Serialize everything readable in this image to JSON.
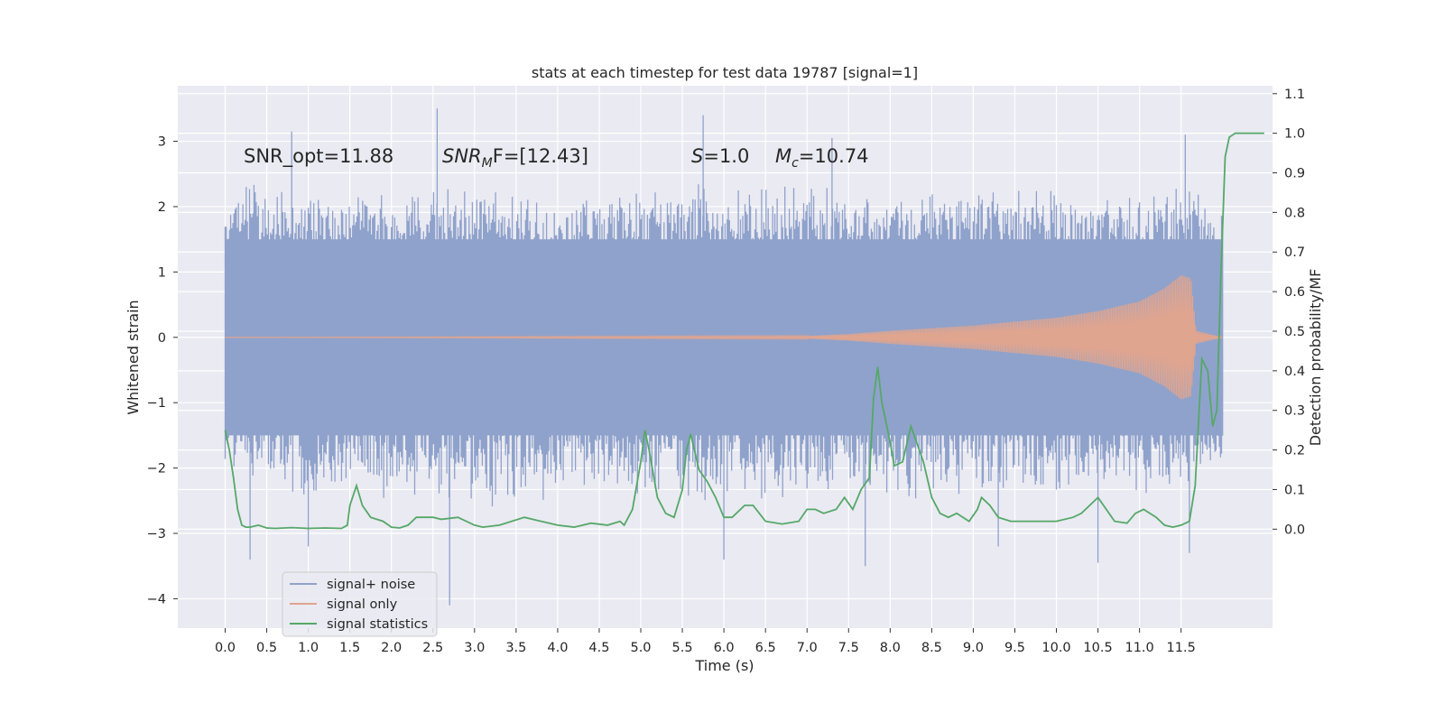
{
  "chart_data": {
    "type": "line",
    "title": "stats at each timestep for test data 19787 [signal=1]",
    "xlabel": "Time (s)",
    "ylabel": "Whitened strain",
    "y2label": "Detection probability/MF",
    "xlim": [
      -0.57,
      12.6
    ],
    "ylim": [
      -4.45,
      3.85
    ],
    "y2lim": [
      -0.25,
      1.12
    ],
    "x_ticks": [
      "0.0",
      "0.5",
      "1.0",
      "1.5",
      "2.0",
      "2.5",
      "3.0",
      "3.5",
      "4.0",
      "4.5",
      "5.0",
      "5.5",
      "6.0",
      "6.5",
      "7.0",
      "7.5",
      "8.0",
      "8.5",
      "9.0",
      "9.5",
      "10.0",
      "10.5",
      "11.0",
      "11.5"
    ],
    "y_ticks": [
      "3",
      "2",
      "1",
      "0",
      "−1",
      "−2",
      "−3",
      "−4"
    ],
    "y2_ticks": [
      "0.0",
      "0.1",
      "0.2",
      "0.3",
      "0.4",
      "0.5",
      "0.6",
      "0.7",
      "0.8",
      "0.9",
      "1.0",
      "1.1"
    ],
    "grid": true,
    "legend_position": "bottom-left",
    "annotations": {
      "snr_opt": "SNR_opt=11.88",
      "snr_mf_prefix": "SNR",
      "snr_mf_sub": "M",
      "snr_mf_suffix": "F=[12.43]",
      "s_var": "S",
      "s_value": "=1.0",
      "mc_var": "M",
      "mc_sub": "c",
      "mc_value": "=10.74"
    },
    "series": [
      {
        "name": "signal+ noise",
        "color": "#8fa2cb",
        "x_range": [
          0.0,
          12.0
        ],
        "envelope": {
          "typical_upper": [
            [
              0.0,
              1.9
            ],
            [
              0.2,
              2.6
            ],
            [
              0.6,
              2.3
            ],
            [
              1.0,
              2.4
            ],
            [
              2.0,
              2.2
            ],
            [
              2.6,
              2.6
            ],
            [
              3.0,
              2.3
            ],
            [
              4.0,
              2.2
            ],
            [
              5.0,
              2.3
            ],
            [
              5.7,
              2.5
            ],
            [
              6.0,
              2.3
            ],
            [
              7.0,
              2.4
            ],
            [
              8.0,
              2.3
            ],
            [
              9.0,
              2.4
            ],
            [
              10.0,
              2.3
            ],
            [
              11.0,
              2.2
            ],
            [
              11.5,
              2.5
            ],
            [
              12.0,
              2.0
            ]
          ],
          "typical_lower": [
            [
              0.0,
              -2.0
            ],
            [
              1.0,
              -2.6
            ],
            [
              2.0,
              -2.5
            ],
            [
              3.0,
              -2.6
            ],
            [
              4.0,
              -2.6
            ],
            [
              5.0,
              -2.5
            ],
            [
              6.0,
              -2.7
            ],
            [
              7.0,
              -2.5
            ],
            [
              8.0,
              -2.6
            ],
            [
              9.0,
              -2.5
            ],
            [
              10.0,
              -2.6
            ],
            [
              11.0,
              -2.6
            ],
            [
              12.0,
              -2.0
            ]
          ],
          "spikes": [
            [
              0.8,
              3.15
            ],
            [
              2.55,
              3.5
            ],
            [
              5.75,
              3.4
            ],
            [
              7.3,
              3.05
            ],
            [
              11.55,
              3.1
            ],
            [
              2.7,
              -4.1
            ],
            [
              0.3,
              -3.4
            ],
            [
              1.0,
              -3.2
            ],
            [
              7.7,
              -3.5
            ],
            [
              10.5,
              -3.45
            ],
            [
              6.0,
              -3.4
            ],
            [
              11.6,
              -3.3
            ],
            [
              9.3,
              -3.2
            ]
          ]
        }
      },
      {
        "name": "signal only",
        "color": "#e0a58f",
        "x_range": [
          0.0,
          12.0
        ],
        "amplitude_envelope": [
          [
            0.0,
            0.0
          ],
          [
            7.0,
            0.02
          ],
          [
            7.5,
            0.05
          ],
          [
            8.0,
            0.1
          ],
          [
            9.0,
            0.18
          ],
          [
            10.0,
            0.3
          ],
          [
            10.5,
            0.4
          ],
          [
            11.0,
            0.55
          ],
          [
            11.3,
            0.75
          ],
          [
            11.5,
            0.95
          ],
          [
            11.62,
            0.9
          ],
          [
            11.68,
            0.1
          ],
          [
            12.0,
            0.0
          ]
        ]
      },
      {
        "name": "signal statistics",
        "color": "#55a868",
        "axis": "right",
        "points": [
          [
            0.0,
            0.25
          ],
          [
            0.05,
            0.2
          ],
          [
            0.1,
            0.13
          ],
          [
            0.15,
            0.05
          ],
          [
            0.2,
            0.01
          ],
          [
            0.25,
            0.005
          ],
          [
            0.3,
            0.005
          ],
          [
            0.4,
            0.01
          ],
          [
            0.5,
            0.003
          ],
          [
            0.6,
            0.002
          ],
          [
            0.8,
            0.004
          ],
          [
            1.0,
            0.002
          ],
          [
            1.2,
            0.003
          ],
          [
            1.4,
            0.002
          ],
          [
            1.47,
            0.01
          ],
          [
            1.5,
            0.06
          ],
          [
            1.58,
            0.11
          ],
          [
            1.65,
            0.06
          ],
          [
            1.75,
            0.03
          ],
          [
            1.9,
            0.02
          ],
          [
            2.0,
            0.005
          ],
          [
            2.1,
            0.003
          ],
          [
            2.2,
            0.01
          ],
          [
            2.3,
            0.03
          ],
          [
            2.5,
            0.03
          ],
          [
            2.6,
            0.025
          ],
          [
            2.8,
            0.03
          ],
          [
            3.0,
            0.01
          ],
          [
            3.1,
            0.005
          ],
          [
            3.3,
            0.01
          ],
          [
            3.6,
            0.03
          ],
          [
            3.8,
            0.02
          ],
          [
            4.0,
            0.01
          ],
          [
            4.2,
            0.005
          ],
          [
            4.4,
            0.015
          ],
          [
            4.6,
            0.01
          ],
          [
            4.75,
            0.02
          ],
          [
            4.8,
            0.01
          ],
          [
            4.9,
            0.05
          ],
          [
            5.0,
            0.17
          ],
          [
            5.05,
            0.25
          ],
          [
            5.1,
            0.2
          ],
          [
            5.2,
            0.08
          ],
          [
            5.3,
            0.04
          ],
          [
            5.4,
            0.03
          ],
          [
            5.5,
            0.1
          ],
          [
            5.55,
            0.2
          ],
          [
            5.6,
            0.24
          ],
          [
            5.7,
            0.15
          ],
          [
            5.8,
            0.12
          ],
          [
            5.9,
            0.08
          ],
          [
            6.0,
            0.03
          ],
          [
            6.1,
            0.03
          ],
          [
            6.25,
            0.06
          ],
          [
            6.35,
            0.06
          ],
          [
            6.5,
            0.02
          ],
          [
            6.7,
            0.013
          ],
          [
            6.9,
            0.02
          ],
          [
            7.0,
            0.05
          ],
          [
            7.1,
            0.05
          ],
          [
            7.2,
            0.04
          ],
          [
            7.35,
            0.05
          ],
          [
            7.45,
            0.08
          ],
          [
            7.55,
            0.05
          ],
          [
            7.65,
            0.1
          ],
          [
            7.75,
            0.13
          ],
          [
            7.8,
            0.33
          ],
          [
            7.85,
            0.41
          ],
          [
            7.9,
            0.32
          ],
          [
            8.0,
            0.22
          ],
          [
            8.05,
            0.16
          ],
          [
            8.15,
            0.17
          ],
          [
            8.25,
            0.26
          ],
          [
            8.3,
            0.23
          ],
          [
            8.4,
            0.17
          ],
          [
            8.5,
            0.08
          ],
          [
            8.6,
            0.04
          ],
          [
            8.7,
            0.03
          ],
          [
            8.8,
            0.04
          ],
          [
            8.95,
            0.02
          ],
          [
            9.05,
            0.05
          ],
          [
            9.1,
            0.08
          ],
          [
            9.2,
            0.06
          ],
          [
            9.3,
            0.03
          ],
          [
            9.45,
            0.02
          ],
          [
            9.6,
            0.02
          ],
          [
            9.8,
            0.02
          ],
          [
            10.0,
            0.02
          ],
          [
            10.2,
            0.03
          ],
          [
            10.3,
            0.04
          ],
          [
            10.45,
            0.07
          ],
          [
            10.5,
            0.08
          ],
          [
            10.6,
            0.05
          ],
          [
            10.7,
            0.02
          ],
          [
            10.85,
            0.015
          ],
          [
            10.95,
            0.04
          ],
          [
            11.05,
            0.05
          ],
          [
            11.2,
            0.03
          ],
          [
            11.3,
            0.01
          ],
          [
            11.4,
            0.005
          ],
          [
            11.5,
            0.01
          ],
          [
            11.6,
            0.02
          ],
          [
            11.67,
            0.11
          ],
          [
            11.75,
            0.43
          ],
          [
            11.82,
            0.4
          ],
          [
            11.88,
            0.26
          ],
          [
            11.93,
            0.3
          ],
          [
            11.98,
            0.65
          ],
          [
            12.03,
            0.94
          ],
          [
            12.08,
            0.99
          ],
          [
            12.15,
            1.0
          ],
          [
            12.5,
            1.0
          ]
        ]
      }
    ]
  }
}
